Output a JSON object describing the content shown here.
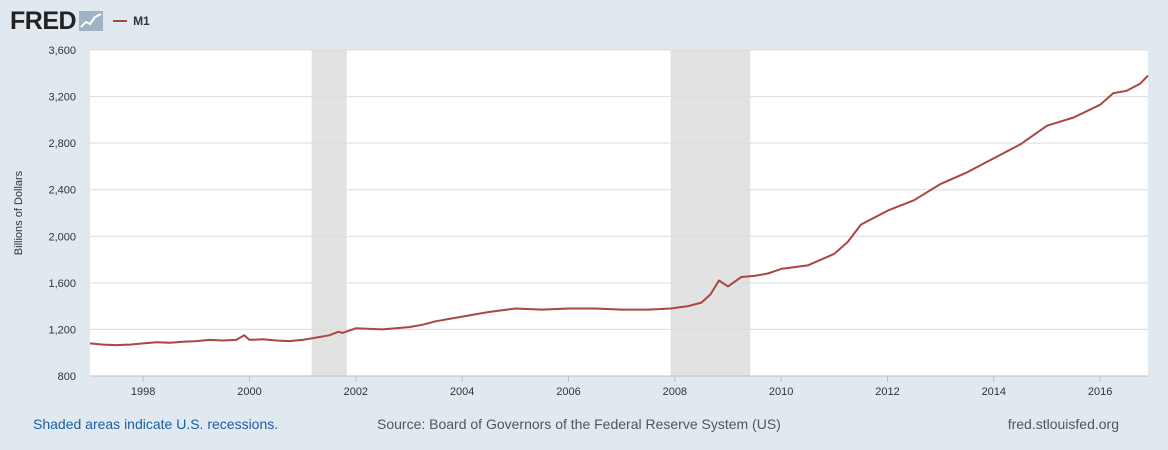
{
  "header": {
    "logo": "FRED",
    "series_name": "M1"
  },
  "colors": {
    "line": "#aa4643",
    "recession": "#e2e2e2",
    "background": "#e1e9f0"
  },
  "footer": {
    "note": "Shaded areas indicate U.S. recessions.",
    "source": "Source: Board of Governors of the Federal Reserve System (US)",
    "site": "fred.stlouisfed.org"
  },
  "chart_data": {
    "type": "line",
    "title": "",
    "xlabel": "",
    "ylabel": "Billions of Dollars",
    "ylim": [
      800,
      3600
    ],
    "yticks": [
      800,
      1200,
      1600,
      2000,
      2400,
      2800,
      3200,
      3600
    ],
    "ytick_labels": [
      "800",
      "1,200",
      "1,600",
      "2,000",
      "2,400",
      "2,800",
      "3,200",
      "3,600"
    ],
    "xlim": [
      1997.0,
      2016.9
    ],
    "xticks": [
      1998,
      2000,
      2002,
      2004,
      2006,
      2008,
      2010,
      2012,
      2014,
      2016
    ],
    "xtick_labels": [
      "1998",
      "2000",
      "2002",
      "2004",
      "2006",
      "2008",
      "2010",
      "2012",
      "2014",
      "2016"
    ],
    "recessions": [
      [
        2001.17,
        2001.83
      ],
      [
        2007.92,
        2009.42
      ]
    ],
    "series": [
      {
        "name": "M1",
        "x": [
          1997.0,
          1997.25,
          1997.5,
          1997.75,
          1998.0,
          1998.25,
          1998.5,
          1998.75,
          1999.0,
          1999.25,
          1999.5,
          1999.75,
          1999.9,
          2000.0,
          2000.25,
          2000.5,
          2000.75,
          2001.0,
          2001.25,
          2001.5,
          2001.67,
          2001.75,
          2002.0,
          2002.5,
          2003.0,
          2003.25,
          2003.5,
          2004.0,
          2004.5,
          2005.0,
          2005.5,
          2006.0,
          2006.5,
          2007.0,
          2007.5,
          2007.92,
          2008.25,
          2008.5,
          2008.67,
          2008.83,
          2009.0,
          2009.25,
          2009.5,
          2009.75,
          2010.0,
          2010.5,
          2011.0,
          2011.25,
          2011.5,
          2012.0,
          2012.5,
          2013.0,
          2013.5,
          2014.0,
          2014.5,
          2015.0,
          2015.5,
          2016.0,
          2016.25,
          2016.5,
          2016.75,
          2016.9
        ],
        "values": [
          1080,
          1070,
          1065,
          1070,
          1080,
          1090,
          1085,
          1095,
          1100,
          1110,
          1105,
          1110,
          1150,
          1110,
          1115,
          1105,
          1100,
          1110,
          1130,
          1150,
          1180,
          1170,
          1210,
          1200,
          1220,
          1240,
          1270,
          1310,
          1350,
          1380,
          1370,
          1380,
          1380,
          1370,
          1370,
          1380,
          1400,
          1430,
          1500,
          1620,
          1570,
          1650,
          1660,
          1680,
          1720,
          1750,
          1850,
          1950,
          2100,
          2220,
          2310,
          2450,
          2550,
          2670,
          2790,
          2950,
          3020,
          3130,
          3230,
          3250,
          3310,
          3380
        ]
      }
    ]
  }
}
